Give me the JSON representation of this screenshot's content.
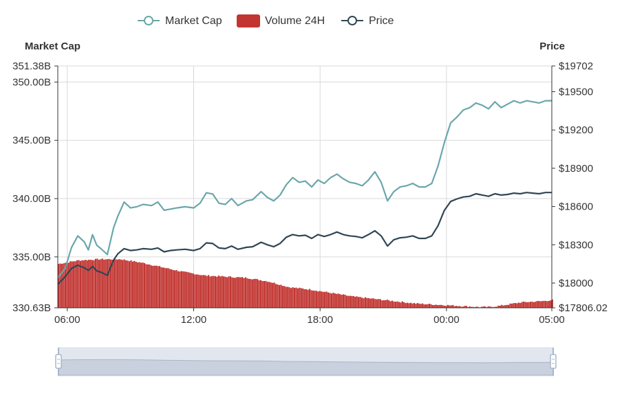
{
  "legend": {
    "market_cap": "Market Cap",
    "volume": "Volume 24H",
    "price": "Price"
  },
  "left_axis_title": "Market Cap",
  "right_axis_title": "Price",
  "colors": {
    "market_cap": "#6aa6ab",
    "volume": "#c23531",
    "price": "#2f4554",
    "grid": "#d9d9d9",
    "slider_fill": "#dde3ec",
    "slider_handle": "#a7b7cc"
  },
  "chart_data": {
    "type": "line",
    "title": "",
    "x_ticks": [
      "06:00",
      "12:00",
      "18:00",
      "00:00",
      "05:00"
    ],
    "x_range_hours": [
      5.55,
      29.0
    ],
    "x_tick_hours": [
      6,
      12,
      18,
      24,
      29
    ],
    "left_axis": {
      "min": 330.63,
      "max": 351.38,
      "ticks": [
        330.63,
        335.0,
        340.0,
        345.0,
        350.0,
        351.38
      ],
      "tick_labels": [
        "330.63B",
        "335.00B",
        "340.00B",
        "345.00B",
        "350.00B",
        "351.38B"
      ],
      "unit": "B"
    },
    "right_axis": {
      "min": 17806.02,
      "max": 19702,
      "ticks": [
        17806.02,
        18000,
        18300,
        18600,
        18900,
        19200,
        19500,
        19702
      ],
      "tick_labels": [
        "$17806.02",
        "$18000",
        "$18300",
        "$18600",
        "$18900",
        "$19200",
        "$19500",
        "$19702"
      ]
    },
    "grid": true,
    "series": [
      {
        "name": "Market Cap",
        "axis": "left",
        "x": [
          5.55,
          5.9,
          6.2,
          6.5,
          6.8,
          7.0,
          7.2,
          7.4,
          7.6,
          7.9,
          8.2,
          8.4,
          8.7,
          9.0,
          9.3,
          9.6,
          10.0,
          10.3,
          10.6,
          10.9,
          11.2,
          11.6,
          12.0,
          12.3,
          12.6,
          12.9,
          13.2,
          13.5,
          13.8,
          14.1,
          14.5,
          14.8,
          15.2,
          15.5,
          15.8,
          16.1,
          16.4,
          16.7,
          17.0,
          17.3,
          17.6,
          17.9,
          18.2,
          18.5,
          18.8,
          19.1,
          19.4,
          19.7,
          20.0,
          20.3,
          20.6,
          20.9,
          21.2,
          21.5,
          21.8,
          22.1,
          22.4,
          22.7,
          23.0,
          23.3,
          23.6,
          23.9,
          24.2,
          24.5,
          24.8,
          25.1,
          25.4,
          25.7,
          26.0,
          26.3,
          26.6,
          26.9,
          27.2,
          27.5,
          27.8,
          28.1,
          28.4,
          28.7,
          29.0
        ],
        "values": [
          333.2,
          334.0,
          335.8,
          336.8,
          336.3,
          335.6,
          336.9,
          336.0,
          335.7,
          335.2,
          337.5,
          338.5,
          339.7,
          339.2,
          339.3,
          339.5,
          339.4,
          339.7,
          339.0,
          339.1,
          339.2,
          339.3,
          339.2,
          339.6,
          340.5,
          340.4,
          339.6,
          339.5,
          340.0,
          339.4,
          339.8,
          339.9,
          340.6,
          340.1,
          339.8,
          340.3,
          341.2,
          341.8,
          341.4,
          341.5,
          341.0,
          341.6,
          341.3,
          341.8,
          342.1,
          341.7,
          341.4,
          341.3,
          341.1,
          341.6,
          342.3,
          341.4,
          339.8,
          340.6,
          341.0,
          341.1,
          341.3,
          341.0,
          341.0,
          341.3,
          342.8,
          344.8,
          346.5,
          347.0,
          347.6,
          347.8,
          348.2,
          348.0,
          347.7,
          348.3,
          347.8,
          348.1,
          348.4,
          348.2,
          348.4,
          348.3,
          348.2,
          348.4,
          348.4
        ],
        "color": "#6aa6ab"
      },
      {
        "name": "Price",
        "axis": "right",
        "x": [
          5.55,
          5.9,
          6.2,
          6.5,
          6.8,
          7.0,
          7.2,
          7.4,
          7.6,
          7.9,
          8.2,
          8.4,
          8.7,
          9.0,
          9.3,
          9.6,
          10.0,
          10.3,
          10.6,
          10.9,
          11.2,
          11.6,
          12.0,
          12.3,
          12.6,
          12.9,
          13.2,
          13.5,
          13.8,
          14.1,
          14.5,
          14.8,
          15.2,
          15.5,
          15.8,
          16.1,
          16.4,
          16.7,
          17.0,
          17.3,
          17.6,
          17.9,
          18.2,
          18.5,
          18.8,
          19.1,
          19.4,
          19.7,
          20.0,
          20.3,
          20.6,
          20.9,
          21.2,
          21.5,
          21.8,
          22.1,
          22.4,
          22.7,
          23.0,
          23.3,
          23.6,
          23.9,
          24.2,
          24.5,
          24.8,
          25.1,
          25.4,
          25.7,
          26.0,
          26.3,
          26.6,
          26.9,
          27.2,
          27.5,
          27.8,
          28.1,
          28.4,
          28.7,
          29.0
        ],
        "values": [
          17990,
          18050,
          18115,
          18140,
          18120,
          18100,
          18130,
          18095,
          18085,
          18060,
          18180,
          18230,
          18270,
          18255,
          18260,
          18270,
          18265,
          18275,
          18245,
          18255,
          18260,
          18265,
          18255,
          18270,
          18315,
          18310,
          18275,
          18270,
          18290,
          18265,
          18280,
          18285,
          18320,
          18300,
          18285,
          18310,
          18360,
          18380,
          18370,
          18375,
          18350,
          18380,
          18365,
          18380,
          18400,
          18380,
          18370,
          18365,
          18355,
          18380,
          18410,
          18370,
          18290,
          18340,
          18355,
          18360,
          18370,
          18350,
          18350,
          18370,
          18450,
          18570,
          18640,
          18660,
          18675,
          18680,
          18700,
          18690,
          18680,
          18700,
          18690,
          18695,
          18705,
          18700,
          18710,
          18705,
          18700,
          18710,
          18710
        ],
        "color": "#2f4554"
      },
      {
        "name": "Volume 24H",
        "type": "bar",
        "axis": "left",
        "x": [
          5.55,
          6.5,
          7.5,
          8.5,
          9.5,
          10.5,
          11.5,
          12.5,
          13.5,
          14.5,
          15.5,
          16.5,
          17.5,
          18.5,
          19.5,
          20.5,
          21.5,
          22.5,
          23.5,
          24.5,
          25.5,
          26.0,
          26.5,
          27.5,
          28.5,
          29.0
        ],
        "values": [
          334.4,
          334.7,
          334.8,
          334.8,
          334.5,
          334.1,
          333.7,
          333.4,
          333.3,
          333.2,
          332.9,
          332.4,
          332.2,
          331.9,
          331.6,
          331.4,
          331.2,
          331.0,
          330.9,
          330.8,
          330.7,
          330.7,
          330.8,
          331.1,
          331.2,
          331.3
        ],
        "color": "#c23531"
      }
    ]
  }
}
